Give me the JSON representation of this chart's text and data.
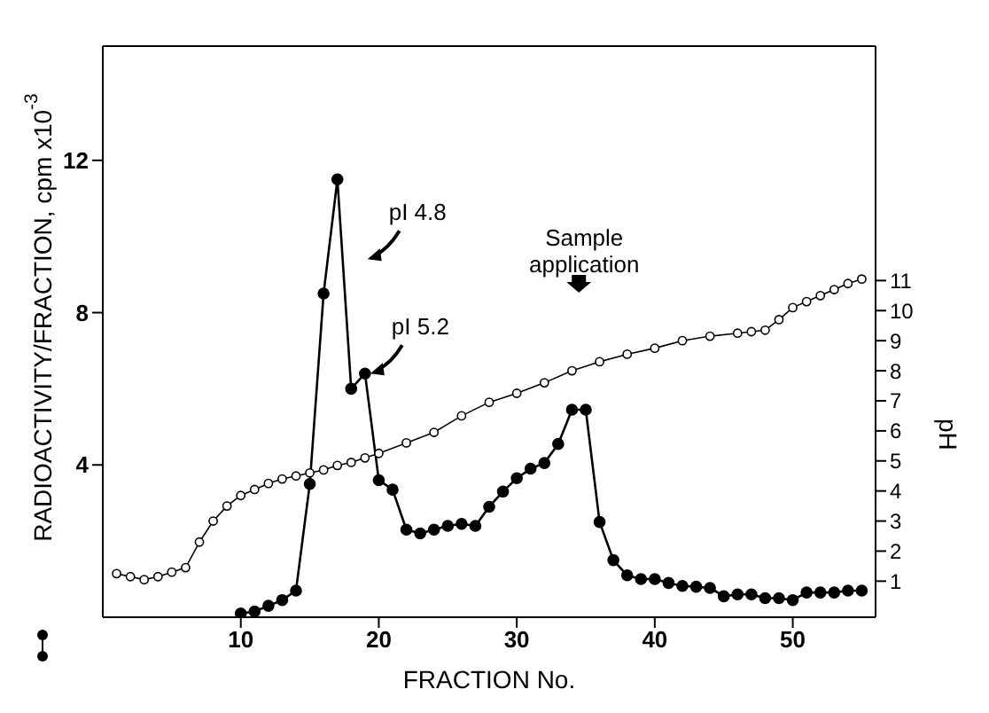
{
  "chart_data": {
    "type": "line",
    "xlabel": "FRACTION  No.",
    "ylabel": "RADIOACTIVITY/FRACTION, cpm x10$^{-3}$",
    "y2label": "pH",
    "xlim": [
      0,
      56
    ],
    "xticks": [
      10,
      20,
      30,
      40,
      50
    ],
    "ylim": [
      0,
      15
    ],
    "yticks": [
      4,
      8,
      12
    ],
    "y2lim": [
      -0.2,
      18.8
    ],
    "y2ticks": [
      1,
      2,
      3,
      4,
      5,
      6,
      7,
      8,
      9,
      10,
      11
    ],
    "marker": "circle",
    "series": [
      {
        "color": "#000000",
        "x": [
          10,
          11,
          12,
          13,
          14,
          15,
          16,
          17,
          18,
          19,
          20,
          21,
          22,
          23,
          24,
          25,
          26,
          27,
          28,
          29,
          30,
          31,
          32,
          33,
          34,
          35,
          36,
          37,
          38,
          39,
          40,
          41,
          42,
          43,
          44,
          45,
          46,
          47,
          48,
          49,
          50,
          51,
          52,
          53,
          54,
          55
        ],
        "values": [
          0.1,
          0.15,
          0.3,
          0.45,
          0.7,
          3.5,
          8.5,
          11.5,
          6.0,
          6.4,
          3.6,
          3.35,
          2.3,
          2.2,
          2.3,
          2.4,
          2.45,
          2.4,
          2.9,
          3.3,
          3.65,
          3.9,
          4.05,
          4.55,
          5.45,
          5.45,
          2.5,
          1.5,
          1.1,
          1.0,
          1.0,
          0.9,
          0.82,
          0.8,
          0.77,
          0.55,
          0.6,
          0.6,
          0.5,
          0.5,
          0.45,
          0.65,
          0.65,
          0.65,
          0.7,
          0.7
        ]
      },
      {
        "color": "#000000",
        "axis": "y2",
        "x": [
          1,
          2,
          3,
          4,
          5,
          6,
          7,
          8,
          9,
          10,
          11,
          12,
          13,
          14,
          15,
          16,
          17,
          18,
          19,
          20,
          22,
          24,
          26,
          28,
          30,
          32,
          34,
          36,
          38,
          40,
          42,
          44,
          46,
          47,
          48,
          49,
          50,
          51,
          52,
          53,
          54,
          55
        ],
        "values": [
          1.25,
          1.15,
          1.05,
          1.15,
          1.3,
          1.45,
          2.3,
          3.0,
          3.5,
          3.85,
          4.05,
          4.25,
          4.4,
          4.5,
          4.6,
          4.7,
          4.85,
          4.95,
          5.1,
          5.25,
          5.6,
          5.95,
          6.5,
          6.95,
          7.25,
          7.6,
          8.0,
          8.3,
          8.55,
          8.75,
          9.0,
          9.15,
          9.25,
          9.3,
          9.35,
          9.7,
          10.1,
          10.3,
          10.5,
          10.7,
          10.9,
          11.05
        ]
      }
    ],
    "annotations": [
      {
        "text": "pI 4.8",
        "x": 17,
        "y": 11.5
      },
      {
        "text": "pI 5.2",
        "x": 19,
        "y": 6.4
      },
      "Sample application"
    ]
  }
}
